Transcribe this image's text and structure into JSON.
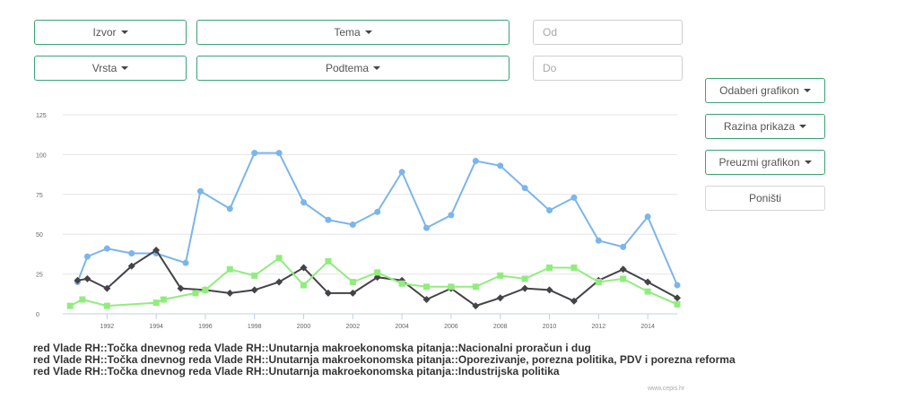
{
  "filters": {
    "izvor_label": "Izvor",
    "tema_label": "Tema",
    "vrsta_label": "Vrsta",
    "podtema_label": "Podtema",
    "od_placeholder": "Od",
    "do_placeholder": "Do"
  },
  "controls": {
    "odaberi_label": "Odaberi grafikon",
    "razina_label": "Razina prikaza",
    "preuzmi_label": "Preuzmi grafikon",
    "ponisti_label": "Poništi"
  },
  "credit": "www.cepis.hr",
  "chart_data": {
    "type": "line",
    "x": [
      1991,
      1992,
      1993,
      1994,
      1995,
      1996,
      1997,
      1998,
      1999,
      2000,
      2001,
      2002,
      2003,
      2004,
      2005,
      2006,
      2007,
      2008,
      2009,
      2010,
      2011,
      2012,
      2013,
      2014,
      2015
    ],
    "xticks": [
      1992,
      1994,
      1996,
      1998,
      2000,
      2002,
      2004,
      2006,
      2008,
      2010,
      2012,
      2014
    ],
    "xlim": [
      1990.2,
      2015.2
    ],
    "yticks": [
      0,
      25,
      50,
      75,
      100,
      125
    ],
    "ylim": [
      0,
      125
    ],
    "grid": true,
    "series": [
      {
        "name": "red Vlade RH::Točka dnevnog reda Vlade RH::Unutarnja makroekonomska pitanja::Nacionalni proračun i dug",
        "color": "#7cb5ec",
        "marker": "circle",
        "points": [
          [
            1990.8,
            20
          ],
          [
            1991.2,
            36
          ],
          [
            1992,
            41
          ],
          [
            1993,
            38
          ],
          [
            1994,
            38
          ],
          [
            1995.2,
            32
          ],
          [
            1995.8,
            77
          ],
          [
            1997,
            66
          ],
          [
            1998,
            101
          ],
          [
            1999,
            101
          ],
          [
            2000,
            70
          ],
          [
            2001,
            59
          ],
          [
            2002,
            56
          ],
          [
            2003,
            64
          ],
          [
            2004,
            89
          ],
          [
            2005,
            54
          ],
          [
            2006,
            62
          ],
          [
            2007,
            96
          ],
          [
            2008,
            93
          ],
          [
            2009,
            79
          ],
          [
            2010,
            65
          ],
          [
            2011,
            73
          ],
          [
            2012,
            46
          ],
          [
            2013,
            42
          ],
          [
            2014,
            61
          ],
          [
            2015.2,
            18
          ]
        ]
      },
      {
        "name": "red Vlade RH::Točka dnevnog reda Vlade RH::Unutarnja makroekonomska pitanja::Oporezivanje, porezna politika, PDV i porezna reforma",
        "color": "#434348",
        "marker": "diamond",
        "points": [
          [
            1990.8,
            21
          ],
          [
            1991.2,
            22
          ],
          [
            1992,
            16
          ],
          [
            1993,
            30
          ],
          [
            1994,
            40
          ],
          [
            1995,
            16
          ],
          [
            1996,
            15
          ],
          [
            1997,
            13
          ],
          [
            1998,
            15
          ],
          [
            1999,
            20
          ],
          [
            2000,
            29
          ],
          [
            2001,
            13
          ],
          [
            2002,
            13
          ],
          [
            2003,
            23
          ],
          [
            2004,
            21
          ],
          [
            2005,
            9
          ],
          [
            2006,
            16
          ],
          [
            2007,
            5
          ],
          [
            2008,
            10
          ],
          [
            2009,
            16
          ],
          [
            2010,
            15
          ],
          [
            2011,
            8
          ],
          [
            2012,
            21
          ],
          [
            2013,
            28
          ],
          [
            2014,
            20
          ],
          [
            2015.2,
            10
          ]
        ]
      },
      {
        "name": "red Vlade RH::Točka dnevnog reda Vlade RH::Unutarnja makroekonomska pitanja::Industrijska politika",
        "color": "#90ed7d",
        "marker": "square",
        "points": [
          [
            1990.5,
            5
          ],
          [
            1991,
            9
          ],
          [
            1992,
            5
          ],
          [
            1994,
            7
          ],
          [
            1994.3,
            9
          ],
          [
            1995.6,
            13
          ],
          [
            1996,
            15
          ],
          [
            1997,
            28
          ],
          [
            1998,
            24
          ],
          [
            1999,
            35
          ],
          [
            2000,
            18
          ],
          [
            2001,
            33
          ],
          [
            2002,
            20
          ],
          [
            2003,
            26
          ],
          [
            2004,
            19
          ],
          [
            2005,
            17
          ],
          [
            2006,
            17
          ],
          [
            2007,
            17
          ],
          [
            2008,
            24
          ],
          [
            2009,
            22
          ],
          [
            2010,
            29
          ],
          [
            2011,
            29
          ],
          [
            2012,
            20
          ],
          [
            2013,
            22
          ],
          [
            2014,
            14
          ],
          [
            2015.2,
            6
          ]
        ]
      }
    ]
  }
}
